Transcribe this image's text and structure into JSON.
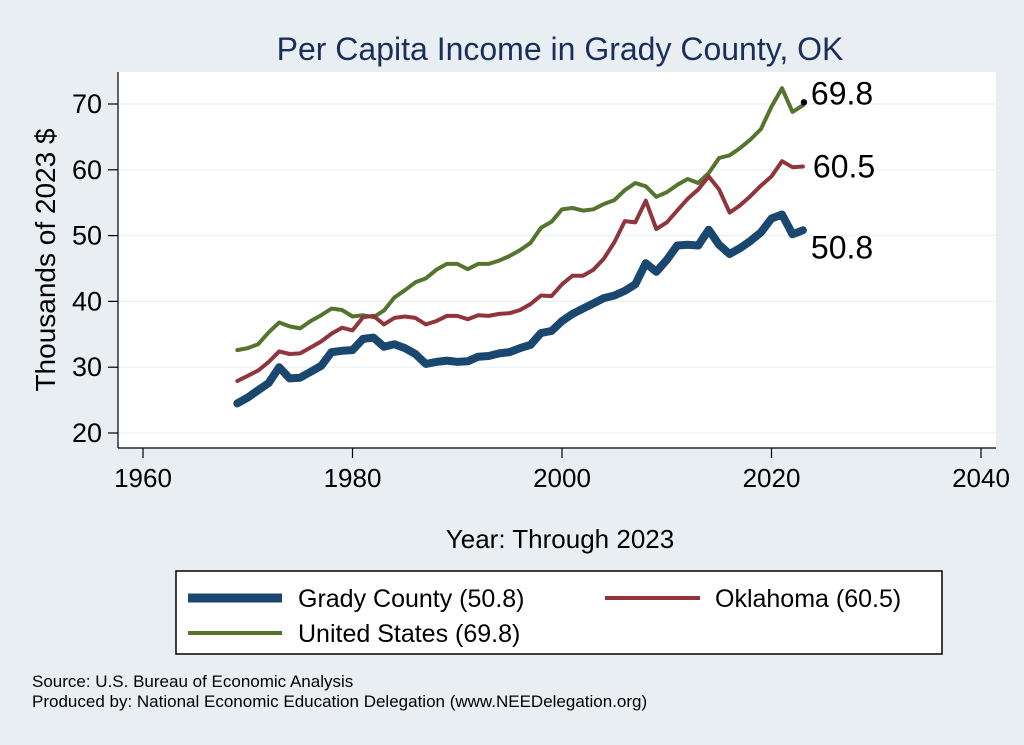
{
  "chart_data": {
    "type": "line",
    "title": "Per Capita Income in Grady County, OK",
    "xlabel": "Year: Through 2023",
    "ylabel": "Thousands of 2023 $",
    "xlim": [
      1960,
      2040
    ],
    "ylim": [
      20,
      74
    ],
    "xticks": [
      1960,
      1980,
      2000,
      2020,
      2040
    ],
    "yticks": [
      20,
      30,
      40,
      50,
      60,
      70
    ],
    "grid": "horizontal",
    "legend_position": "bottom",
    "x": [
      1969,
      1970,
      1971,
      1972,
      1973,
      1974,
      1975,
      1976,
      1977,
      1978,
      1979,
      1980,
      1981,
      1982,
      1983,
      1984,
      1985,
      1986,
      1987,
      1988,
      1989,
      1990,
      1991,
      1992,
      1993,
      1994,
      1995,
      1996,
      1997,
      1998,
      1999,
      2000,
      2001,
      2002,
      2003,
      2004,
      2005,
      2006,
      2007,
      2008,
      2009,
      2010,
      2011,
      2012,
      2013,
      2014,
      2015,
      2016,
      2017,
      2018,
      2019,
      2020,
      2021,
      2022,
      2023
    ],
    "series": [
      {
        "name": "Grady County",
        "legend_label": "Grady County (50.8)",
        "end_label": "50.8",
        "color": "#1a476f",
        "width": 8,
        "values": [
          24.5,
          25.4,
          26.5,
          27.6,
          30.0,
          28.3,
          28.4,
          29.3,
          30.2,
          32.3,
          32.5,
          32.6,
          34.3,
          34.5,
          33.1,
          33.5,
          32.9,
          32.0,
          30.5,
          30.8,
          31.0,
          30.8,
          30.9,
          31.6,
          31.7,
          32.1,
          32.3,
          32.9,
          33.4,
          35.2,
          35.5,
          37.0,
          38.1,
          38.9,
          39.7,
          40.5,
          40.9,
          41.6,
          42.6,
          45.8,
          44.5,
          46.3,
          48.5,
          48.6,
          48.5,
          50.9,
          48.6,
          47.2,
          48.1,
          49.2,
          50.5,
          52.6,
          53.2,
          50.2,
          50.8
        ]
      },
      {
        "name": "Oklahoma",
        "legend_label": "Oklahoma (60.5)",
        "end_label": "60.5",
        "color": "#90353b",
        "width": 4,
        "values": [
          27.9,
          28.7,
          29.5,
          30.8,
          32.4,
          32.0,
          32.1,
          33.0,
          33.9,
          35.1,
          36.0,
          35.6,
          37.6,
          37.8,
          36.5,
          37.5,
          37.7,
          37.5,
          36.5,
          37.0,
          37.8,
          37.8,
          37.3,
          37.9,
          37.8,
          38.1,
          38.2,
          38.7,
          39.6,
          40.9,
          40.8,
          42.6,
          43.9,
          43.9,
          44.8,
          46.5,
          49.0,
          52.2,
          52.0,
          55.3,
          51.0,
          52.0,
          53.8,
          55.6,
          57.0,
          59.0,
          57.0,
          53.5,
          54.6,
          56.0,
          57.6,
          59.0,
          61.3,
          60.4,
          60.5
        ]
      },
      {
        "name": "United States",
        "legend_label": "United States (69.8)",
        "end_label": "69.8",
        "color": "#55752f",
        "width": 4,
        "values": [
          32.6,
          32.9,
          33.5,
          35.3,
          36.8,
          36.2,
          35.9,
          37.0,
          37.9,
          38.9,
          38.7,
          37.7,
          37.9,
          37.6,
          38.6,
          40.6,
          41.7,
          42.9,
          43.5,
          44.8,
          45.7,
          45.7,
          44.9,
          45.7,
          45.7,
          46.2,
          46.9,
          47.8,
          48.9,
          51.2,
          52.1,
          54.0,
          54.2,
          53.8,
          54.0,
          54.8,
          55.4,
          56.9,
          58.0,
          57.5,
          55.9,
          56.6,
          57.7,
          58.6,
          58.0,
          59.5,
          61.8,
          62.2,
          63.3,
          64.6,
          66.2,
          69.6,
          72.4,
          68.8,
          69.8
        ]
      }
    ]
  },
  "source": {
    "line1": "Source: U.S. Bureau of Economic Analysis",
    "line2": "Produced by: National Economic Education Delegation (www.NEEDelegation.org)"
  }
}
